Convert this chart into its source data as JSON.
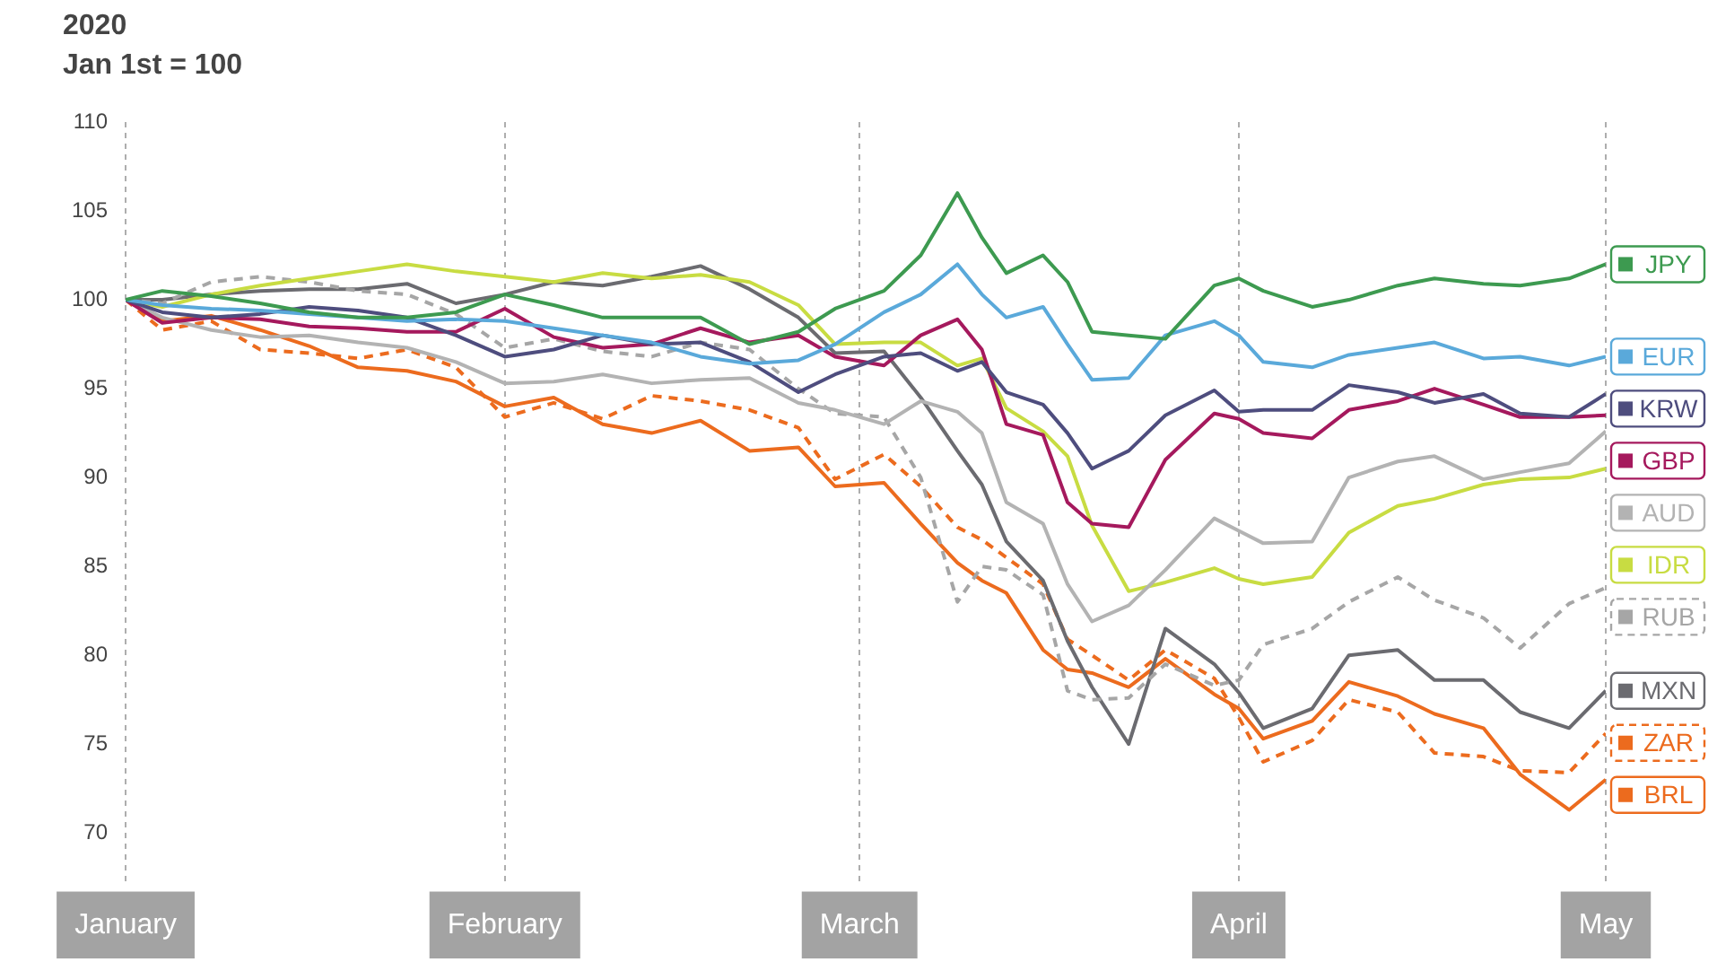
{
  "chart_data": {
    "type": "line",
    "title": "2020",
    "subtitle": "Jan 1st = 100",
    "marker": "none",
    "grid": "x",
    "legend": "right",
    "x": [
      "2020-01-01",
      "2020-01-04",
      "2020-01-08",
      "2020-01-12",
      "2020-01-16",
      "2020-01-20",
      "2020-01-24",
      "2020-01-28",
      "2020-02-01",
      "2020-02-05",
      "2020-02-09",
      "2020-02-13",
      "2020-02-17",
      "2020-02-21",
      "2020-02-25",
      "2020-02-28",
      "2020-03-03",
      "2020-03-06",
      "2020-03-09",
      "2020-03-11",
      "2020-03-13",
      "2020-03-16",
      "2020-03-18",
      "2020-03-20",
      "2020-03-23",
      "2020-03-26",
      "2020-03-30",
      "2020-04-01",
      "2020-04-03",
      "2020-04-07",
      "2020-04-10",
      "2020-04-14",
      "2020-04-17",
      "2020-04-21",
      "2020-04-24",
      "2020-04-28",
      "2020-05-01"
    ],
    "xlim": [
      "2020-01-01",
      "2020-05-01"
    ],
    "xticks": [
      {
        "value": "2020-01-01",
        "label": "January"
      },
      {
        "value": "2020-02-01",
        "label": "February"
      },
      {
        "value": "2020-03-01",
        "label": "March"
      },
      {
        "value": "2020-04-01",
        "label": "April"
      },
      {
        "value": "2020-05-01",
        "label": "May"
      }
    ],
    "ylim": [
      67,
      110
    ],
    "yticks": [
      70,
      75,
      80,
      85,
      90,
      95,
      100,
      105,
      110
    ],
    "series": [
      {
        "name": "JPY",
        "color": "#3d9a50",
        "values": [
          100,
          100.5,
          100.2,
          99.8,
          99.3,
          99,
          99,
          99.3,
          100.3,
          99.7,
          99,
          99,
          99,
          97.5,
          98.2,
          99.5,
          100.5,
          102.5,
          106,
          103.5,
          101.5,
          102.5,
          101,
          98.2,
          98,
          97.8,
          100.8,
          101.2,
          100.5,
          99.6,
          100,
          100.8,
          101.2,
          100.9,
          100.8,
          101.2,
          102
        ]
      },
      {
        "name": "EUR",
        "color": "#5aa9da",
        "values": [
          100,
          99.7,
          99.5,
          99.4,
          99.2,
          99,
          98.8,
          98.9,
          98.8,
          98.4,
          98,
          97.6,
          96.8,
          96.4,
          96.6,
          97.5,
          99.3,
          100.3,
          102,
          100.3,
          99,
          99.6,
          97.5,
          95.5,
          95.6,
          98,
          98.8,
          98,
          96.5,
          96.2,
          96.9,
          97.3,
          97.6,
          96.7,
          96.8,
          96.3,
          96.8
        ]
      },
      {
        "name": "KRW",
        "color": "#4e4d7e",
        "values": [
          100,
          99.3,
          99,
          99.2,
          99.6,
          99.4,
          99,
          98,
          96.8,
          97.2,
          98,
          97.5,
          97.6,
          96.5,
          94.8,
          95.8,
          96.8,
          97,
          96,
          96.5,
          94.8,
          94.1,
          92.5,
          90.5,
          91.5,
          93.5,
          94.9,
          93.7,
          93.8,
          93.8,
          95.2,
          94.8,
          94.2,
          94.7,
          93.6,
          93.4,
          94.7
        ]
      },
      {
        "name": "GBP",
        "color": "#a5195d",
        "values": [
          100,
          98.7,
          99,
          98.9,
          98.5,
          98.4,
          98.2,
          98.2,
          99.5,
          97.9,
          97.3,
          97.5,
          98.4,
          97.6,
          98,
          96.8,
          96.3,
          98,
          98.9,
          97.2,
          93,
          92.4,
          88.6,
          87.4,
          87.2,
          91,
          93.6,
          93.3,
          92.5,
          92.2,
          93.8,
          94.3,
          95,
          94.1,
          93.4,
          93.4,
          93.5
        ]
      },
      {
        "name": "AUD",
        "color": "#b3b3b3",
        "values": [
          100,
          99,
          98.3,
          97.9,
          98,
          97.6,
          97.3,
          96.5,
          95.3,
          95.4,
          95.8,
          95.3,
          95.5,
          95.6,
          94.2,
          93.8,
          93,
          94.3,
          93.7,
          92.5,
          88.6,
          87.4,
          84,
          81.9,
          82.8,
          84.8,
          87.7,
          87,
          86.3,
          86.4,
          90,
          90.9,
          91.2,
          89.9,
          90.3,
          90.8,
          92.6
        ]
      },
      {
        "name": "IDR",
        "color": "#c8dc42",
        "values": [
          100,
          99.6,
          100.3,
          100.8,
          101.2,
          101.6,
          102,
          101.6,
          101.3,
          101,
          101.5,
          101.2,
          101.4,
          101,
          99.7,
          97.5,
          97.6,
          97.6,
          96.3,
          96.7,
          93.9,
          92.6,
          91.2,
          87.3,
          83.6,
          84.1,
          84.9,
          84.3,
          84,
          84.4,
          86.9,
          88.4,
          88.8,
          89.6,
          89.9,
          90,
          90.5
        ]
      },
      {
        "name": "RUB",
        "color": "#a6a6a6",
        "line_style": "dashed",
        "values": [
          100,
          99.8,
          101,
          101.3,
          101,
          100.5,
          100.3,
          99.2,
          97.3,
          97.8,
          97.1,
          96.8,
          97.6,
          97.2,
          95,
          93.6,
          93.4,
          90,
          83,
          85,
          84.8,
          83.4,
          78,
          77.5,
          77.6,
          79.5,
          78.3,
          78.6,
          80.6,
          81.5,
          83,
          84.4,
          83.1,
          82.1,
          80.4,
          82.9,
          83.8
        ]
      },
      {
        "name": "MXN",
        "color": "#6b6b70",
        "values": [
          100,
          100,
          100.3,
          100.5,
          100.6,
          100.6,
          100.9,
          99.8,
          100.3,
          101,
          100.8,
          101.3,
          101.9,
          100.6,
          99,
          97,
          97.1,
          94.5,
          91.5,
          89.6,
          86.4,
          84.2,
          80.8,
          78.2,
          75,
          81.5,
          79.5,
          77.9,
          75.9,
          77,
          80,
          80.3,
          78.6,
          78.6,
          76.8,
          75.9,
          78
        ]
      },
      {
        "name": "ZAR",
        "color": "#ec6b1e",
        "line_style": "dashed",
        "values": [
          100,
          98.3,
          98.8,
          97.2,
          97,
          96.7,
          97.2,
          96.2,
          93.4,
          94.2,
          93.3,
          94.6,
          94.3,
          93.8,
          92.8,
          89.9,
          91.3,
          89.5,
          87.2,
          86.5,
          85.5,
          84,
          80.9,
          80,
          78.6,
          80.3,
          78.7,
          76.5,
          74,
          75.2,
          77.5,
          76.8,
          74.5,
          74.3,
          73.5,
          73.4,
          75.6
        ]
      },
      {
        "name": "BRL",
        "color": "#ec6b1e",
        "values": [
          100,
          98.8,
          99.1,
          98.3,
          97.4,
          96.2,
          96,
          95.4,
          94,
          94.5,
          93,
          92.5,
          93.2,
          91.5,
          91.7,
          89.5,
          89.7,
          87.4,
          85.2,
          84.2,
          83.5,
          80.3,
          79.2,
          79,
          78.2,
          79.8,
          77.8,
          77,
          75.3,
          76.3,
          78.5,
          77.7,
          76.7,
          75.9,
          73.3,
          71.3,
          73
        ]
      }
    ]
  }
}
